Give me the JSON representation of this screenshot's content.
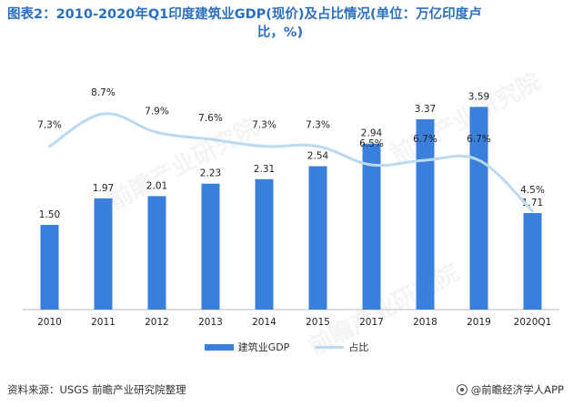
{
  "title_line1": "图表2：2010-2020年Q1印度建筑业GDP(现价)及占比情况(单位：万亿印度卢",
  "title_line2": "比，%)",
  "legend": {
    "bar_label": "建筑业GDP",
    "line_label": "占比"
  },
  "footer": {
    "source": "资料来源：USGS 前瞻产业研究院整理",
    "brand": "@前瞻经济学人APP"
  },
  "watermark": "前瞻产业研究院",
  "colors": {
    "bar": "#3a7fdc",
    "line": "#bcd9f2",
    "title": "#2b6fbf"
  },
  "chart_data": {
    "type": "bar",
    "categories": [
      "2010",
      "2011",
      "2012",
      "2013",
      "2014",
      "2015",
      "2017",
      "2018",
      "2019",
      "2020Q1"
    ],
    "series": [
      {
        "name": "建筑业GDP",
        "type": "bar",
        "values": [
          1.5,
          1.97,
          2.01,
          2.23,
          2.31,
          2.54,
          2.94,
          3.37,
          3.59,
          1.71
        ],
        "labels": [
          "1.50",
          "1.97",
          "2.01",
          "2.23",
          "2.31",
          "2.54",
          "2.94",
          "3.37",
          "3.59",
          "1.71"
        ]
      },
      {
        "name": "占比",
        "type": "line",
        "values": [
          7.3,
          8.7,
          7.9,
          7.6,
          7.3,
          7.3,
          6.5,
          6.7,
          6.7,
          4.5
        ],
        "labels": [
          "7.3%",
          "8.7%",
          "7.9%",
          "7.6%",
          "7.3%",
          "7.3%",
          "6.5%",
          "6.7%",
          "6.7%",
          "4.5%"
        ]
      }
    ],
    "legend_position": "bottom",
    "grid": false
  }
}
